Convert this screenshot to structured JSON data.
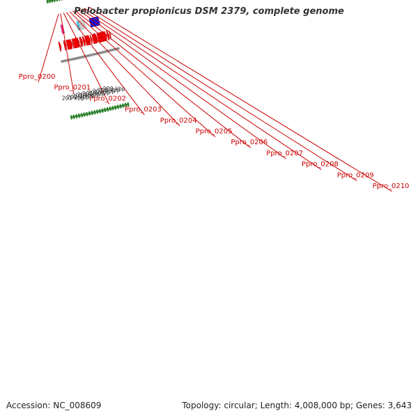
{
  "title": "Pelobacter propionicus DSM 2379, complete genome",
  "footer": {
    "accession": "Accession: NC_008609",
    "summary": "Topology: circular; Length: 4,008,000 bp; Genes: 3,643"
  },
  "colors": {
    "cds": "#ee0000",
    "rna_pink": "#ee3399",
    "highlight_blue": "#1111dd",
    "cyan": "#33ccee",
    "grey": "#cccccc",
    "backbone": "#888888",
    "tick": "#2a7f2a",
    "label": "#cc0000"
  },
  "genes": [
    {
      "id": "Ppro_0200",
      "kb": 201.72
    },
    {
      "id": "Ppro_0201",
      "kb": 202.12
    },
    {
      "id": "Ppro_0202",
      "kb": 202.75
    },
    {
      "id": "Ppro_0203",
      "kb": 203.35
    },
    {
      "id": "Ppro_0204",
      "kb": 204.03
    },
    {
      "id": "Ppro_0205",
      "kb": 204.63
    },
    {
      "id": "Ppro_0206",
      "kb": 205.08
    },
    {
      "id": "Ppro_0207",
      "kb": 205.78
    },
    {
      "id": "Ppro_0208",
      "kb": 206.38
    },
    {
      "id": "Ppro_0209",
      "kb": 207.05
    },
    {
      "id": "Ppro_0210",
      "kb": 208.05
    }
  ],
  "forward_features": [
    {
      "start": 201.6,
      "end": 202.1,
      "type": "rna_pink"
    },
    {
      "start": 204.9,
      "end": 205.3,
      "type": "cyan"
    },
    {
      "start": 205.3,
      "end": 206.5,
      "type": "grey"
    },
    {
      "start": 207.5,
      "end": 209.4,
      "type": "highlight_blue"
    }
  ],
  "reverse_features": [
    {
      "start": 200.5,
      "end": 200.9,
      "type": "cds"
    },
    {
      "start": 201.5,
      "end": 201.95,
      "type": "cds"
    },
    {
      "start": 202.05,
      "end": 203.15,
      "type": "cds"
    },
    {
      "start": 203.2,
      "end": 203.4,
      "type": "cds"
    },
    {
      "start": 203.45,
      "end": 204.6,
      "type": "cds"
    },
    {
      "start": 204.72,
      "end": 204.92,
      "type": "cds"
    },
    {
      "start": 204.96,
      "end": 205.28,
      "type": "cds"
    },
    {
      "start": 205.35,
      "end": 205.78,
      "type": "cds"
    },
    {
      "start": 205.82,
      "end": 206.82,
      "type": "cds"
    },
    {
      "start": 206.88,
      "end": 207.2,
      "type": "cds"
    },
    {
      "start": 207.28,
      "end": 208.25,
      "type": "cds"
    },
    {
      "start": 208.3,
      "end": 210.15,
      "type": "cds"
    },
    {
      "start": 210.25,
      "end": 210.65,
      "type": "cds"
    },
    {
      "start": 210.75,
      "end": 211.0,
      "type": "cds"
    }
  ],
  "kbp_labels": [
    "201 kbp",
    "202 kbp",
    "203 kbp",
    "204 kbp",
    "205 kbp",
    "206 kbp",
    "207 kbp",
    "208 kbp",
    "209 kbp"
  ]
}
